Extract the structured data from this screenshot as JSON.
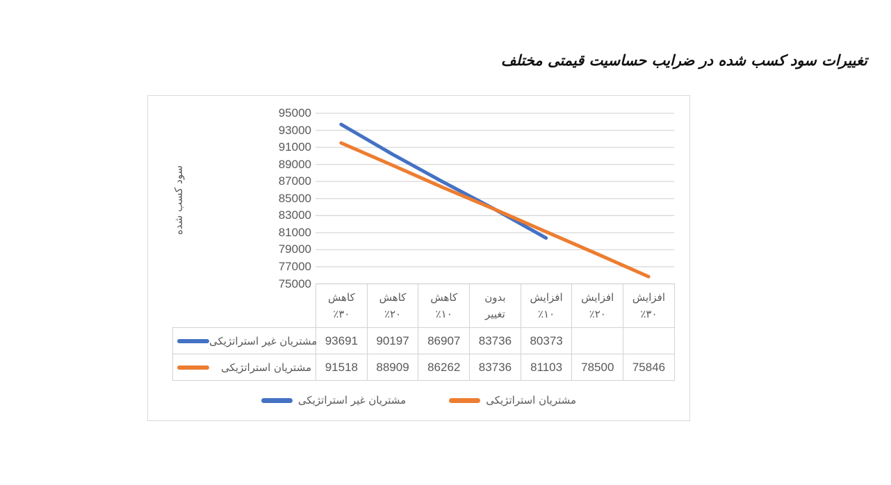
{
  "title": "تغییرات سود کسب شده در ضرایب حساسیت قیمتی مختلف",
  "colors": {
    "series_blue": "#4472C4",
    "series_orange": "#ED7D31",
    "gridline": "#D9D9D9",
    "axis_text": "#595959",
    "table_border": "#D2D2D2",
    "frame_border": "#D9D9D9"
  },
  "chart_data": {
    "type": "line",
    "title": "تغییرات سود کسب شده در ضرایب حساسیت قیمتی مختلف",
    "xlabel": "",
    "ylabel": "سود کسب شده",
    "ylim": [
      75000,
      95000
    ],
    "yticks": [
      95000,
      93000,
      91000,
      89000,
      87000,
      85000,
      83000,
      81000,
      79000,
      77000,
      75000
    ],
    "grid": true,
    "legend_position": "bottom",
    "categories": [
      "کاهش ٪۳۰",
      "کاهش ٪۲۰",
      "کاهش ٪۱۰",
      "بدون تغییر",
      "افزایش ٪۱۰",
      "افزایش ٪۲۰",
      "افزایش ٪۳۰"
    ],
    "categories_2line": [
      [
        "کاهش",
        "٪۳۰"
      ],
      [
        "کاهش",
        "٪۲۰"
      ],
      [
        "کاهش",
        "٪۱۰"
      ],
      [
        "بدون",
        "تغییر"
      ],
      [
        "افزایش",
        "٪۱۰"
      ],
      [
        "افزایش",
        "٪۲۰"
      ],
      [
        "افزایش",
        "٪۳۰"
      ]
    ],
    "series": [
      {
        "name": "مشتریان غیر استراتژیکی",
        "color": "#4472C4",
        "values": [
          93691,
          90197,
          86907,
          83736,
          80373,
          null,
          null
        ]
      },
      {
        "name": "مشتریان استراتژیکی",
        "color": "#ED7D31",
        "values": [
          91518,
          88909,
          86262,
          83736,
          81103,
          78500,
          75846
        ]
      }
    ]
  }
}
